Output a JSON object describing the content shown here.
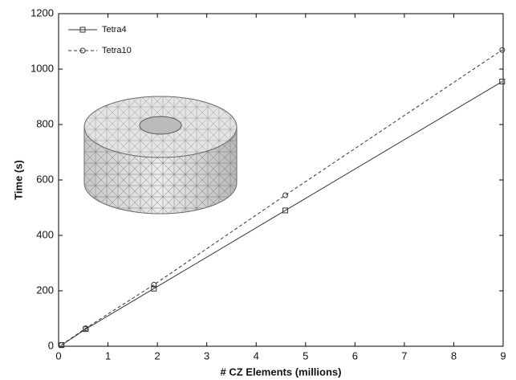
{
  "chart_data": {
    "type": "line",
    "x_label": "# CZ Elements (millions)",
    "y_label": "Time (s)",
    "series": [
      {
        "name": "Tetra4",
        "color": "#333333",
        "dash": "solid",
        "marker": "square",
        "x": [
          0.06,
          0.55,
          1.93,
          4.59,
          8.98
        ],
        "values": [
          4,
          62,
          208,
          490,
          955
        ]
      },
      {
        "name": "Tetra10",
        "color": "#333333",
        "dash": "dashed",
        "marker": "circle",
        "x": [
          0.06,
          0.55,
          1.93,
          4.59,
          8.98
        ],
        "values": [
          5,
          65,
          222,
          545,
          1069
        ]
      }
    ],
    "xlim": [
      0,
      9
    ],
    "xticks": [
      0,
      1,
      2,
      3,
      4,
      5,
      6,
      7,
      8,
      9
    ],
    "ylim": [
      0,
      1200
    ],
    "yticks": [
      0,
      200,
      400,
      600,
      800,
      1000,
      1200
    ],
    "legend": "upper-left",
    "grid": false
  }
}
